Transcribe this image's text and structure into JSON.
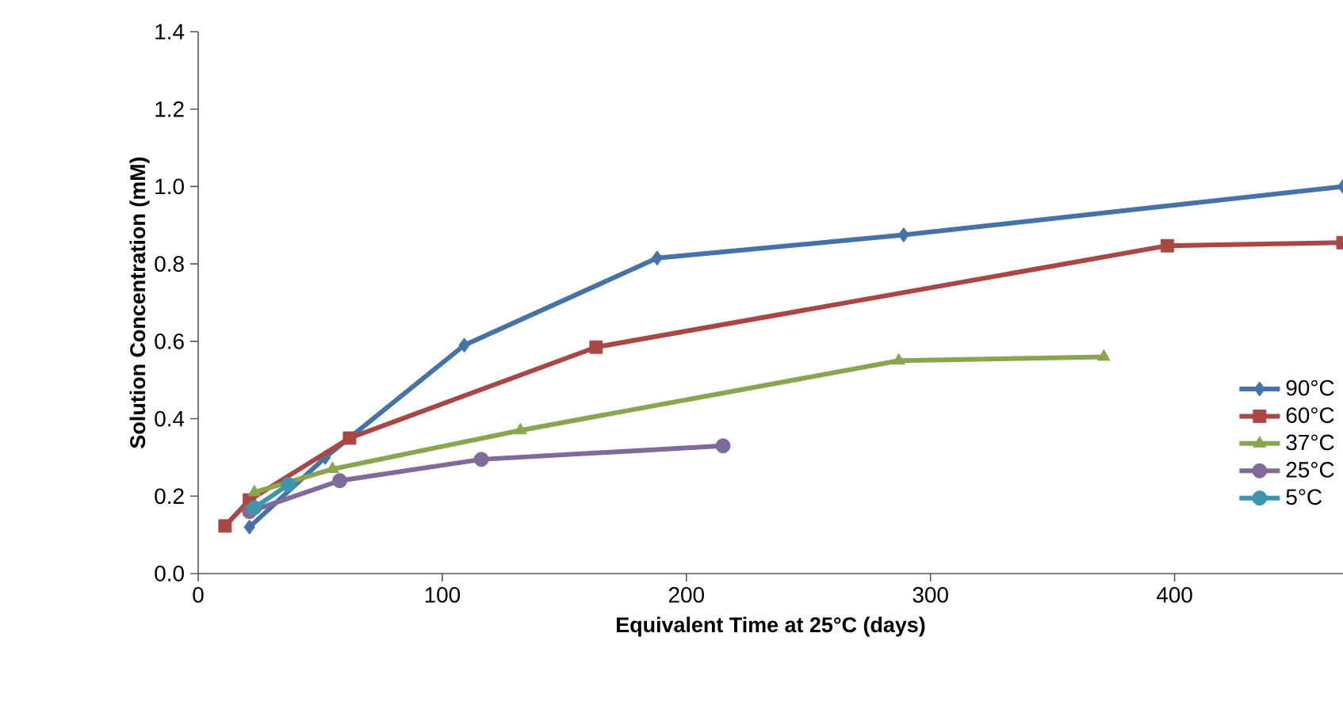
{
  "chart_data": {
    "type": "line",
    "xlabel": "Equivalent Time at 25°C (days)",
    "ylabel": "Solution Concentration (mM)",
    "xlim": [
      0,
      469
    ],
    "xticks": [
      0,
      100,
      200,
      300,
      400
    ],
    "ylim": [
      0,
      1.4
    ],
    "yticks": [
      {
        "value": 0,
        "label": "0.0"
      },
      0.2,
      0.4,
      0.6,
      0.8,
      {
        "value": 1,
        "label": "1.0"
      },
      1.2,
      1.4
    ],
    "grid": false,
    "legend": "right",
    "line_style": "solid",
    "series": [
      {
        "name": "90°C",
        "color": "#4572a7",
        "marker": "diamond",
        "x": [
          21,
          52,
          109,
          188,
          289,
          469
        ],
        "values": [
          0.12,
          0.3,
          0.59,
          0.815,
          0.875,
          1.0
        ]
      },
      {
        "name": "60°C",
        "color": "#aa4643",
        "marker": "square",
        "x": [
          11,
          21,
          62,
          163,
          397,
          469
        ],
        "values": [
          0.123,
          0.19,
          0.35,
          0.585,
          0.847,
          0.855
        ]
      },
      {
        "name": "37°C",
        "color": "#89a54e",
        "marker": "triangle",
        "x": [
          23,
          55,
          132,
          287,
          371
        ],
        "values": [
          0.21,
          0.27,
          0.37,
          0.55,
          0.56
        ]
      },
      {
        "name": "25°C",
        "color": "#80699b",
        "marker": "circle",
        "x": [
          21,
          58,
          116,
          215
        ],
        "values": [
          0.16,
          0.24,
          0.295,
          0.33
        ]
      },
      {
        "name": "5°C",
        "color": "#3d96ae",
        "marker": "circle",
        "x": [
          23,
          37
        ],
        "values": [
          0.17,
          0.23
        ]
      }
    ]
  }
}
